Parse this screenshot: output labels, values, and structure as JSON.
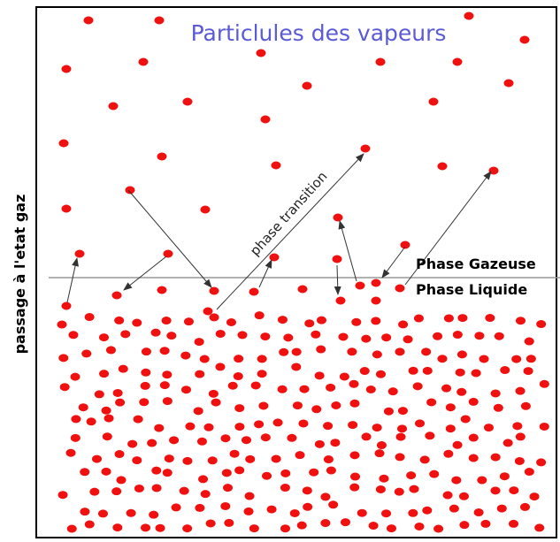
{
  "title": "Particlules des vapeurs",
  "labels": {
    "gas_phase": "Phase Gazeuse",
    "liquid_phase": "Phase Liquide",
    "transition": "phase transition",
    "side_axis": "passage à l'etat gaz"
  }
}
